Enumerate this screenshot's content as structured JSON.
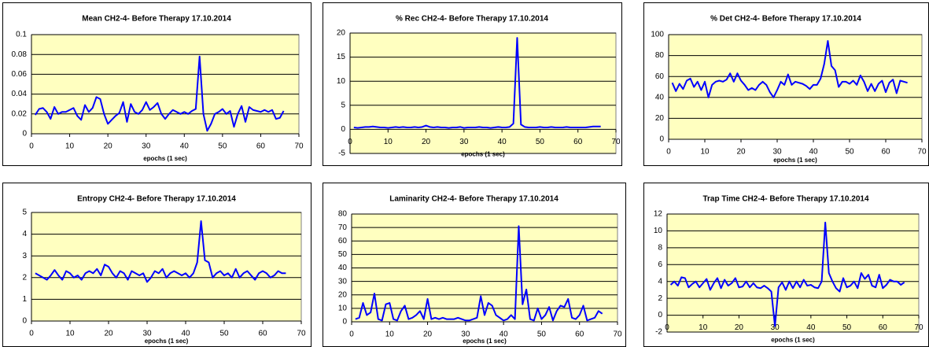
{
  "chart_data": [
    {
      "type": "line",
      "title": "Mean CH2-4- Before Therapy 17.10.2014",
      "x_label": "epochs (1 sec)",
      "color": "#0000ff",
      "plot_background": "#ffffc0",
      "grid": true,
      "x": [
        1,
        2,
        3,
        4,
        5,
        6,
        7,
        8,
        9,
        10,
        11,
        12,
        13,
        14,
        15,
        16,
        17,
        18,
        19,
        20,
        21,
        22,
        23,
        24,
        25,
        26,
        27,
        28,
        29,
        30,
        31,
        32,
        33,
        34,
        35,
        36,
        37,
        38,
        39,
        40,
        41,
        42,
        43,
        44,
        45,
        46,
        47,
        48,
        49,
        50,
        51,
        52,
        53,
        54,
        55,
        56,
        57,
        58,
        59,
        60,
        61,
        62,
        63,
        64,
        65,
        66
      ],
      "values": [
        0.019,
        0.025,
        0.026,
        0.022,
        0.015,
        0.027,
        0.02,
        0.022,
        0.022,
        0.024,
        0.026,
        0.018,
        0.014,
        0.029,
        0.022,
        0.026,
        0.037,
        0.035,
        0.02,
        0.01,
        0.014,
        0.018,
        0.021,
        0.032,
        0.012,
        0.03,
        0.022,
        0.02,
        0.024,
        0.032,
        0.024,
        0.027,
        0.031,
        0.02,
        0.015,
        0.02,
        0.024,
        0.022,
        0.02,
        0.022,
        0.02,
        0.023,
        0.025,
        0.078,
        0.02,
        0.003,
        0.01,
        0.02,
        0.022,
        0.025,
        0.02,
        0.023,
        0.007,
        0.02,
        0.028,
        0.012,
        0.027,
        0.024,
        0.023,
        0.022,
        0.024,
        0.022,
        0.024,
        0.015,
        0.016,
        0.023
      ],
      "xlim": [
        0,
        70
      ],
      "xticks": [
        0,
        10,
        20,
        30,
        40,
        50,
        60,
        70
      ],
      "ylim": [
        0,
        0.1
      ],
      "yticks": [
        0,
        0.02,
        0.04,
        0.06,
        0.08,
        0.1
      ]
    },
    {
      "type": "line",
      "title": "% Rec CH2-4- Before Therapy 17.10.2014",
      "x_label": "epochs (1 sec)",
      "color": "#0000ff",
      "plot_background": "#ffffc0",
      "grid": true,
      "x": [
        1,
        2,
        3,
        4,
        5,
        6,
        7,
        8,
        9,
        10,
        11,
        12,
        13,
        14,
        15,
        16,
        17,
        18,
        19,
        20,
        21,
        22,
        23,
        24,
        25,
        26,
        27,
        28,
        29,
        30,
        31,
        32,
        33,
        34,
        35,
        36,
        37,
        38,
        39,
        40,
        41,
        42,
        43,
        44,
        45,
        46,
        47,
        48,
        49,
        50,
        51,
        52,
        53,
        54,
        55,
        56,
        57,
        58,
        59,
        60,
        61,
        62,
        63,
        64,
        65,
        66
      ],
      "values": [
        0.4,
        0.3,
        0.4,
        0.5,
        0.5,
        0.6,
        0.5,
        0.4,
        0.4,
        0.3,
        0.4,
        0.5,
        0.4,
        0.5,
        0.4,
        0.4,
        0.5,
        0.4,
        0.5,
        0.8,
        0.5,
        0.4,
        0.5,
        0.4,
        0.4,
        0.3,
        0.4,
        0.4,
        0.5,
        0.3,
        0.4,
        0.4,
        0.4,
        0.5,
        0.4,
        0.4,
        0.3,
        0.4,
        0.5,
        0.4,
        0.4,
        0.5,
        1.2,
        19,
        1,
        0.5,
        0.4,
        0.4,
        0.4,
        0.5,
        0.4,
        0.4,
        0.5,
        0.4,
        0.4,
        0.4,
        0.5,
        0.4,
        0.4,
        0.4,
        0.4,
        0.4,
        0.5,
        0.6,
        0.6,
        0.6
      ],
      "xlim": [
        0,
        70
      ],
      "xticks": [
        0,
        10,
        20,
        30,
        40,
        50,
        60,
        70
      ],
      "ylim": [
        -5,
        20
      ],
      "yticks": [
        -5,
        0,
        5,
        10,
        15,
        20
      ]
    },
    {
      "type": "line",
      "title": "% Det CH2-4- Before Therapy 17.10.2014",
      "x_label": "epochs (1 sec)",
      "color": "#0000ff",
      "plot_background": "#ffffc0",
      "grid": true,
      "x": [
        1,
        2,
        3,
        4,
        5,
        6,
        7,
        8,
        9,
        10,
        11,
        12,
        13,
        14,
        15,
        16,
        17,
        18,
        19,
        20,
        21,
        22,
        23,
        24,
        25,
        26,
        27,
        28,
        29,
        30,
        31,
        32,
        33,
        34,
        35,
        36,
        37,
        38,
        39,
        40,
        41,
        42,
        43,
        44,
        45,
        46,
        47,
        48,
        49,
        50,
        51,
        52,
        53,
        54,
        55,
        56,
        57,
        58,
        59,
        60,
        61,
        62,
        63,
        64,
        65,
        66
      ],
      "values": [
        54,
        46,
        53,
        48,
        56,
        58,
        50,
        55,
        47,
        55,
        40,
        52,
        55,
        56,
        55,
        57,
        63,
        55,
        63,
        56,
        52,
        47,
        49,
        47,
        52,
        55,
        52,
        45,
        40,
        47,
        55,
        52,
        62,
        52,
        55,
        54,
        53,
        51,
        48,
        52,
        52,
        58,
        72,
        94,
        70,
        66,
        50,
        55,
        55,
        53,
        56,
        52,
        61,
        55,
        46,
        53,
        46,
        53,
        56,
        45,
        54,
        57,
        44,
        56,
        55,
        54
      ],
      "xlim": [
        0,
        70
      ],
      "xticks": [
        0,
        10,
        20,
        30,
        40,
        50,
        60,
        70
      ],
      "ylim": [
        0,
        100
      ],
      "yticks": [
        0,
        20,
        40,
        60,
        80,
        100
      ]
    },
    {
      "type": "line",
      "title": "Entropy CH2-4- Before Therapy 17.10.2014",
      "x_label": "epochs (1 sec)",
      "color": "#0000ff",
      "plot_background": "#ffffc0",
      "grid": true,
      "x": [
        1,
        2,
        3,
        4,
        5,
        6,
        7,
        8,
        9,
        10,
        11,
        12,
        13,
        14,
        15,
        16,
        17,
        18,
        19,
        20,
        21,
        22,
        23,
        24,
        25,
        26,
        27,
        28,
        29,
        30,
        31,
        32,
        33,
        34,
        35,
        36,
        37,
        38,
        39,
        40,
        41,
        42,
        43,
        44,
        45,
        46,
        47,
        48,
        49,
        50,
        51,
        52,
        53,
        54,
        55,
        56,
        57,
        58,
        59,
        60,
        61,
        62,
        63,
        64,
        65,
        66
      ],
      "values": [
        2.2,
        2.1,
        2.0,
        1.9,
        2.1,
        2.35,
        2.1,
        1.9,
        2.3,
        2.2,
        2.0,
        2.1,
        1.9,
        2.2,
        2.3,
        2.2,
        2.4,
        2.1,
        2.6,
        2.5,
        2.2,
        2.0,
        2.3,
        2.2,
        1.9,
        2.3,
        2.2,
        2.1,
        2.2,
        1.8,
        2.0,
        2.3,
        2.2,
        2.4,
        2.0,
        2.2,
        2.3,
        2.2,
        2.1,
        2.2,
        2.0,
        2.2,
        2.7,
        4.6,
        2.8,
        2.7,
        2.0,
        2.2,
        2.3,
        2.1,
        2.2,
        2.0,
        2.4,
        2.0,
        2.2,
        2.3,
        2.1,
        1.9,
        2.2,
        2.3,
        2.2,
        2.0,
        2.1,
        2.3,
        2.2,
        2.2
      ],
      "xlim": [
        0,
        70
      ],
      "xticks": [
        0,
        10,
        20,
        30,
        40,
        50,
        60,
        70
      ],
      "ylim": [
        0,
        5
      ],
      "yticks": [
        0,
        1,
        2,
        3,
        4,
        5
      ]
    },
    {
      "type": "line",
      "title": "Laminarity CH2-4- Before Therapy 17.10.2014",
      "x_label": "epochs (1 sec)",
      "color": "#0000ff",
      "plot_background": "#ffffc0",
      "grid": true,
      "x": [
        1,
        2,
        3,
        4,
        5,
        6,
        7,
        8,
        9,
        10,
        11,
        12,
        13,
        14,
        15,
        16,
        17,
        18,
        19,
        20,
        21,
        22,
        23,
        24,
        25,
        26,
        27,
        28,
        29,
        30,
        31,
        32,
        33,
        34,
        35,
        36,
        37,
        38,
        39,
        40,
        41,
        42,
        43,
        44,
        45,
        46,
        47,
        48,
        49,
        50,
        51,
        52,
        53,
        54,
        55,
        56,
        57,
        58,
        59,
        60,
        61,
        62,
        63,
        64,
        65,
        66
      ],
      "values": [
        2,
        3,
        14,
        5,
        7,
        21,
        2,
        1,
        13,
        14,
        2,
        1,
        8,
        12,
        2,
        3,
        5,
        8,
        2,
        17,
        2,
        3,
        2,
        3,
        2,
        2,
        2,
        3,
        2,
        1,
        1,
        2,
        3,
        19,
        5,
        14,
        12,
        5,
        3,
        1,
        2,
        5,
        2,
        71,
        13,
        24,
        2,
        1,
        10,
        2,
        5,
        11,
        1,
        8,
        12,
        11,
        17,
        3,
        2,
        5,
        12,
        1,
        2,
        3,
        8,
        6
      ],
      "xlim": [
        0,
        70
      ],
      "xticks": [
        0,
        10,
        20,
        30,
        40,
        50,
        60,
        70
      ],
      "ylim": [
        0,
        80
      ],
      "yticks": [
        0,
        10,
        20,
        30,
        40,
        50,
        60,
        70,
        80
      ]
    },
    {
      "type": "line",
      "title": "Trap Time CH2-4- Before Therapy 17.10.2014",
      "x_label": "epochs (1 sec)",
      "color": "#0000ff",
      "plot_background": "#ffffc0",
      "grid": true,
      "x": [
        1,
        2,
        3,
        4,
        5,
        6,
        7,
        8,
        9,
        10,
        11,
        12,
        13,
        14,
        15,
        16,
        17,
        18,
        19,
        20,
        21,
        22,
        23,
        24,
        25,
        26,
        27,
        28,
        29,
        30,
        31,
        32,
        33,
        34,
        35,
        36,
        37,
        38,
        39,
        40,
        41,
        42,
        43,
        44,
        45,
        46,
        47,
        48,
        49,
        50,
        51,
        52,
        53,
        54,
        55,
        56,
        57,
        58,
        59,
        60,
        61,
        62,
        63,
        64,
        65,
        66
      ],
      "values": [
        3.6,
        4.0,
        3.5,
        4.5,
        4.4,
        3.3,
        3.7,
        4.0,
        3.3,
        3.8,
        4.3,
        3.0,
        3.8,
        4.4,
        3.2,
        4.2,
        3.5,
        3.8,
        4.4,
        3.3,
        3.4,
        4.0,
        3.3,
        3.8,
        3.3,
        3.2,
        3.5,
        3.2,
        2.8,
        -1.3,
        3.3,
        3.9,
        3.0,
        4.0,
        3.2,
        4.0,
        3.3,
        4.2,
        3.5,
        3.6,
        3.3,
        3.2,
        4.0,
        11.0,
        5.0,
        4.0,
        3.2,
        2.8,
        4.4,
        3.3,
        3.5,
        4.0,
        3.2,
        5.0,
        4.3,
        4.8,
        3.5,
        3.3,
        4.8,
        3.2,
        3.6,
        4.2,
        4.0,
        4.0,
        3.6,
        3.9
      ],
      "xlim": [
        0,
        70
      ],
      "xticks": [
        0,
        10,
        20,
        30,
        40,
        50,
        60,
        70
      ],
      "ylim": [
        -2,
        12
      ],
      "yticks": [
        -2,
        0,
        2,
        4,
        6,
        8,
        10,
        12
      ]
    }
  ]
}
